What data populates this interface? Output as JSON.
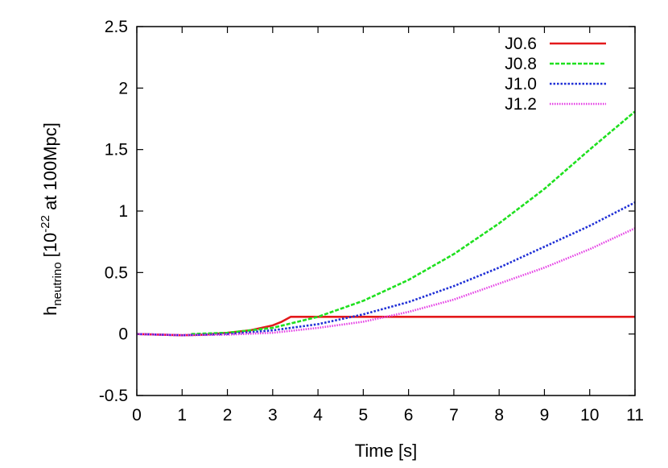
{
  "chart_data": {
    "type": "line",
    "xlabel": "Time [s]",
    "ylabel": {
      "base": "h",
      "sub": "neutrino",
      "mid": " [10",
      "sup": "-22",
      "tail": " at 100Mpc]"
    },
    "xlim": [
      0,
      11
    ],
    "ylim": [
      -0.5,
      2.5
    ],
    "x_ticks": [
      "0",
      "1",
      "2",
      "3",
      "4",
      "5",
      "6",
      "7",
      "8",
      "9",
      "10",
      "11"
    ],
    "y_ticks": [
      "-0.5",
      "0",
      "0.5",
      "1",
      "1.5",
      "2",
      "2.5"
    ],
    "grid": false,
    "legend_position": "top-right",
    "series": [
      {
        "name": "J0.6",
        "color": "#e31a1c",
        "style": "solid",
        "x": [
          0,
          0.5,
          1.0,
          1.5,
          2.0,
          2.5,
          3.0,
          3.2,
          3.4,
          4,
          5,
          6,
          7,
          8,
          9,
          10,
          11
        ],
        "y": [
          0,
          -0.005,
          -0.01,
          -0.005,
          0.01,
          0.03,
          0.07,
          0.1,
          0.14,
          0.14,
          0.14,
          0.14,
          0.14,
          0.14,
          0.14,
          0.14,
          0.14
        ]
      },
      {
        "name": "J0.8",
        "color": "#1fe01f",
        "style": "dashed",
        "x": [
          1.2,
          2,
          3,
          4,
          5,
          6,
          7,
          8,
          9,
          10,
          11
        ],
        "y": [
          0,
          0.01,
          0.05,
          0.14,
          0.27,
          0.44,
          0.65,
          0.9,
          1.18,
          1.5,
          1.81
        ]
      },
      {
        "name": "J1.0",
        "color": "#1f2fd6",
        "style": "dotted",
        "x": [
          0,
          1,
          2,
          3,
          4,
          5,
          6,
          7,
          8,
          9,
          10,
          11
        ],
        "y": [
          0,
          -0.01,
          0,
          0.03,
          0.08,
          0.16,
          0.26,
          0.39,
          0.54,
          0.71,
          0.88,
          1.07
        ]
      },
      {
        "name": "J1.2",
        "color": "#e43ce4",
        "style": "dotted-fine",
        "x": [
          0,
          1,
          2,
          3,
          4,
          5,
          6,
          7,
          8,
          9,
          10,
          11
        ],
        "y": [
          0,
          -0.01,
          -0.005,
          0.01,
          0.05,
          0.1,
          0.18,
          0.28,
          0.41,
          0.54,
          0.69,
          0.86
        ]
      }
    ]
  }
}
